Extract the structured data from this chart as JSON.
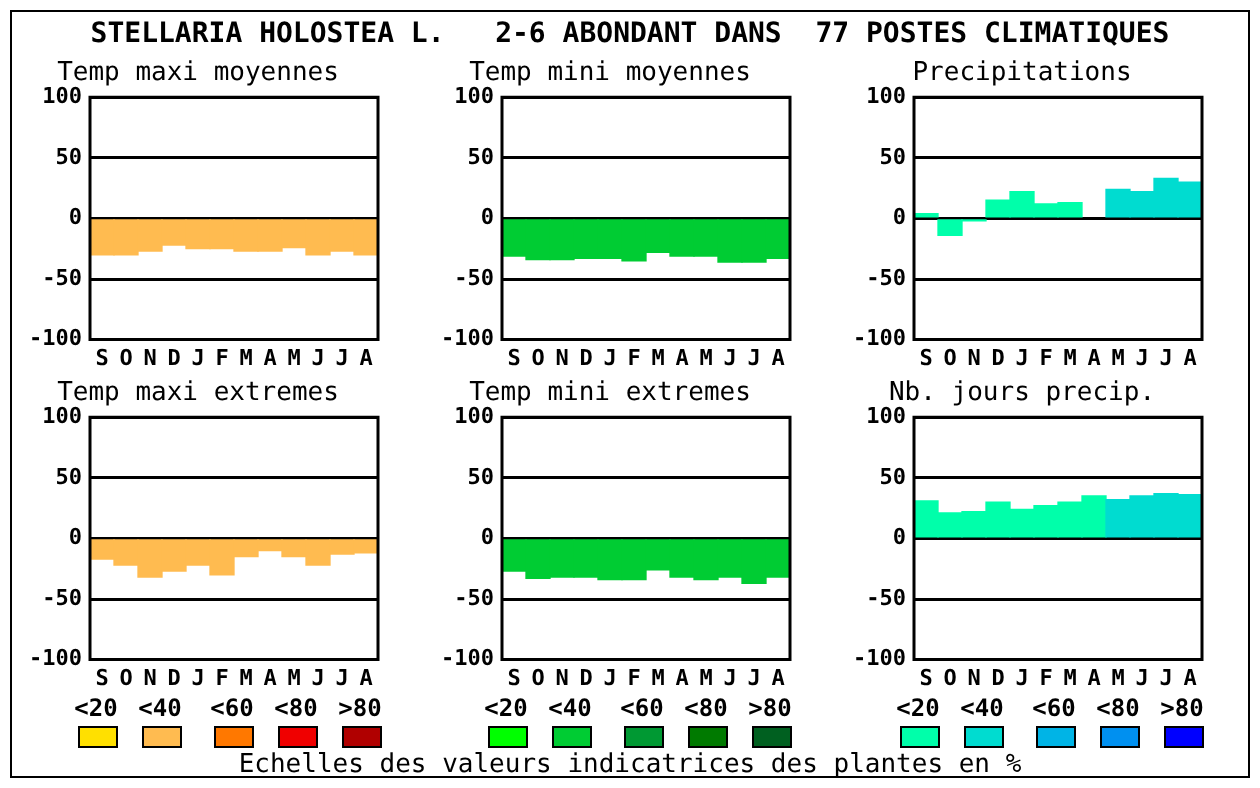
{
  "chart_data": [
    {
      "type": "other",
      "title": "STELLARIA HOLOSTEA L.   2-6 ABONDANT DANS  77 POSTES CLIMATIQUES"
    },
    {
      "type": "bar",
      "title": "Temp maxi moyennes",
      "categories": [
        "S",
        "O",
        "N",
        "D",
        "J",
        "F",
        "M",
        "A",
        "M",
        "J",
        "J",
        "A"
      ],
      "values": [
        -30,
        -30,
        -27,
        -22,
        -25,
        -25,
        -27,
        -27,
        -24,
        -30,
        -27,
        -30
      ],
      "color": "#ffbb50",
      "ylim": [
        -100,
        100
      ],
      "yticks": [
        -100,
        -50,
        0,
        50,
        100
      ],
      "grid": "y"
    },
    {
      "type": "bar",
      "title": "Temp mini moyennes",
      "categories": [
        "S",
        "O",
        "N",
        "D",
        "J",
        "F",
        "M",
        "A",
        "M",
        "J",
        "J",
        "A"
      ],
      "values": [
        -31,
        -34,
        -34,
        -33,
        -33,
        -35,
        -28,
        -31,
        -31,
        -36,
        -36,
        -33
      ],
      "color": "#00cc33",
      "ylim": [
        -100,
        100
      ],
      "yticks": [
        -100,
        -50,
        0,
        50,
        100
      ],
      "grid": "y"
    },
    {
      "type": "bar",
      "title": "Precipitations",
      "categories": [
        "S",
        "O",
        "N",
        "D",
        "J",
        "F",
        "M",
        "A",
        "M",
        "J",
        "J",
        "A"
      ],
      "values": [
        4,
        -14,
        -2,
        15,
        22,
        12,
        13,
        null,
        24,
        22,
        33,
        30
      ],
      "colors": [
        "#00ffaa",
        "#00ffaa",
        "#00ffaa",
        "#00ffaa",
        "#00ffaa",
        "#00ffaa",
        "#00ffaa",
        "#00ffaa",
        "#00dcd0",
        "#00dcd0",
        "#00dcd0",
        "#00dcd0"
      ],
      "ylim": [
        -100,
        100
      ],
      "yticks": [
        -100,
        -50,
        0,
        50,
        100
      ],
      "grid": "y"
    },
    {
      "type": "bar",
      "title": "Temp maxi extremes",
      "categories": [
        "S",
        "O",
        "N",
        "D",
        "J",
        "F",
        "M",
        "A",
        "M",
        "J",
        "J",
        "A"
      ],
      "values": [
        -17,
        -22,
        -32,
        -27,
        -22,
        -30,
        -15,
        -10,
        -15,
        -22,
        -13,
        -12
      ],
      "color": "#ffbb50",
      "ylim": [
        -100,
        100
      ],
      "yticks": [
        -100,
        -50,
        0,
        50,
        100
      ],
      "grid": "y"
    },
    {
      "type": "bar",
      "title": "Temp mini extremes",
      "categories": [
        "S",
        "O",
        "N",
        "D",
        "J",
        "F",
        "M",
        "A",
        "M",
        "J",
        "J",
        "A"
      ],
      "values": [
        -27,
        -33,
        -32,
        -32,
        -34,
        -34,
        -26,
        -32,
        -34,
        -32,
        -37,
        -32
      ],
      "color": "#00cc33",
      "ylim": [
        -100,
        100
      ],
      "yticks": [
        -100,
        -50,
        0,
        50,
        100
      ],
      "grid": "y"
    },
    {
      "type": "bar",
      "title": "Nb. jours precip.",
      "categories": [
        "S",
        "O",
        "N",
        "D",
        "J",
        "F",
        "M",
        "A",
        "M",
        "J",
        "J",
        "A"
      ],
      "values": [
        31,
        21,
        22,
        30,
        24,
        27,
        30,
        35,
        32,
        35,
        37,
        36
      ],
      "colors": [
        "#00ffaa",
        "#00ffaa",
        "#00ffaa",
        "#00ffaa",
        "#00ffaa",
        "#00ffaa",
        "#00ffaa",
        "#00ffaa",
        "#00dcd0",
        "#00dcd0",
        "#00dcd0",
        "#00dcd0"
      ],
      "ylim": [
        -100,
        100
      ],
      "yticks": [
        -100,
        -50,
        0,
        50,
        100
      ],
      "grid": "y"
    },
    {
      "type": "other",
      "categories": [
        "<20",
        "<40",
        "<60",
        "<80",
        ">80"
      ],
      "colors": [
        "#ffe000",
        "#ffbb50",
        "#ff7800",
        "#f00000",
        "#b00000"
      ]
    },
    {
      "type": "other",
      "categories": [
        "<20",
        "<40",
        "<60",
        "<80",
        ">80"
      ],
      "colors": [
        "#00ff00",
        "#00cc33",
        "#009933",
        "#007a00",
        "#006020"
      ]
    },
    {
      "type": "other",
      "categories": [
        "<20",
        "<40",
        "<60",
        "<80",
        ">80"
      ],
      "colors": [
        "#00ffaa",
        "#00dcd0",
        "#00b4e6",
        "#0090f0",
        "#0000ff"
      ]
    },
    {
      "type": "other",
      "annotations": [
        "Echelles des valeurs indicatrices des plantes en %"
      ]
    }
  ]
}
